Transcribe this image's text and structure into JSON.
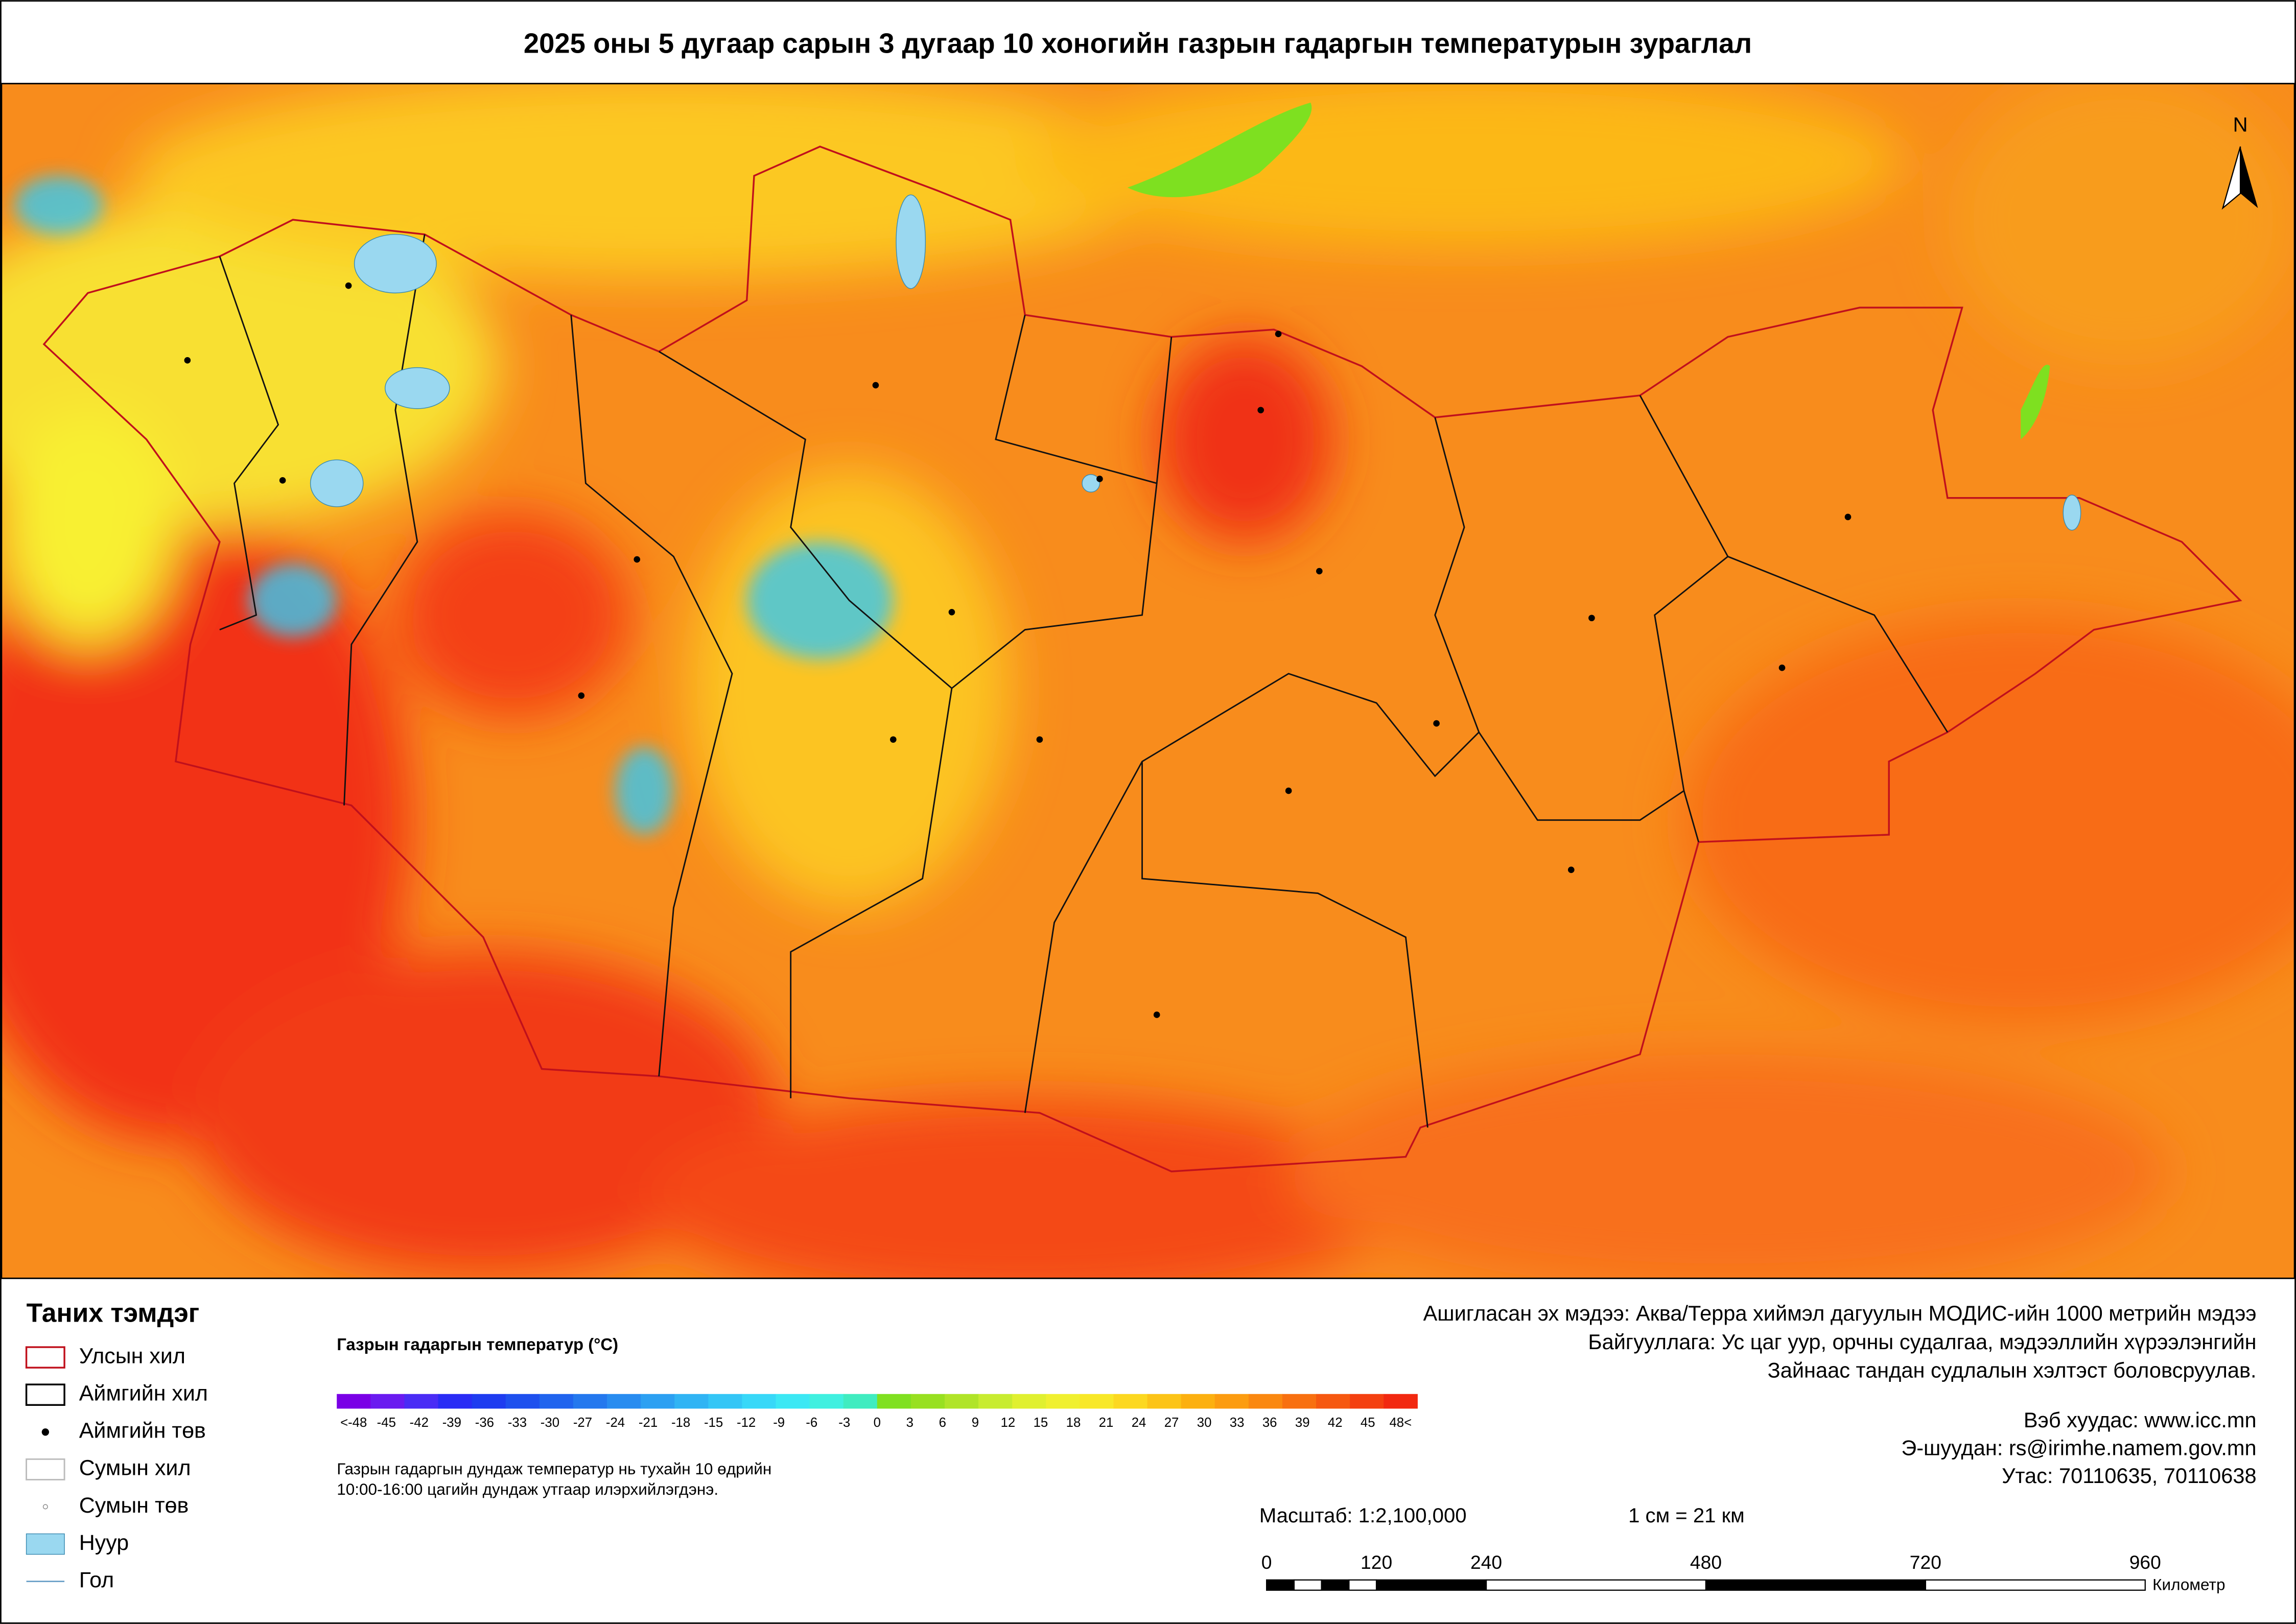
{
  "title": "2025 оны 5 дугаар сарын 3 дугаар 10 хоногийн газрын гадаргын температурын зураглал",
  "north": "N",
  "legend": {
    "title": "Таних тэмдэг",
    "items": [
      "Улсын хил",
      "Аймгийн хил",
      "Аймгийн төв",
      "Сумын хил",
      "Сумын төв",
      "Нуур",
      "Гол"
    ]
  },
  "colorbar": {
    "title": "Газрын гадаргын температур (°C)",
    "labels": [
      "<-48",
      "-45",
      "-42",
      "-39",
      "-36",
      "-33",
      "-30",
      "-27",
      "-24",
      "-21",
      "-18",
      "-15",
      "-12",
      "-9",
      "-6",
      "-3",
      "0",
      "3",
      "6",
      "9",
      "12",
      "15",
      "18",
      "21",
      "24",
      "27",
      "30",
      "33",
      "36",
      "39",
      "42",
      "45",
      "48<"
    ],
    "colors": [
      "#7a00e6",
      "#6a1bf0",
      "#4a2cf5",
      "#2a2cf5",
      "#1e3cf0",
      "#1e50ee",
      "#2064ee",
      "#2478ee",
      "#288cf0",
      "#2ca0f2",
      "#30b4f4",
      "#34c6f6",
      "#38d8f8",
      "#3ce8f4",
      "#40f0e0",
      "#40ecc0",
      "#80e020",
      "#98e020",
      "#b0e428",
      "#c8ec30",
      "#e0f030",
      "#f0f030",
      "#f8e828",
      "#fcd820",
      "#fcc418",
      "#fcb010",
      "#fc9c10",
      "#fa8810",
      "#f87010",
      "#f65810",
      "#f44010",
      "#f22810"
    ]
  },
  "note": [
    "Газрын гадаргын дундаж температур нь тухайн 10 өдрийн",
    "10:00-16:00 цагийн дундаж утгаар илэрхийлэгдэнэ."
  ],
  "source": [
    "Ашигласан эх мэдээ: Аква/Терра хиймэл дагуулын МОДИС-ийн 1000 метрийн мэдээ",
    "Байгууллага: Ус цаг уур, орчны судалгаа, мэдээллийн хүрээлэнгийн",
    "Зайнаас тандан судлалын хэлтэст боловсруулав."
  ],
  "contact": [
    "Вэб хуудас: www.icc.mn",
    "Э-шуудан: rs@irimhe.namem.gov.mn",
    "Утас: 70110635, 70110638"
  ],
  "scale": {
    "text": "Масштаб: 1:2,100,000",
    "ratio": "1 см = 21 км",
    "ticks": [
      0,
      120,
      240,
      480,
      720,
      960
    ],
    "unit": "Километр"
  }
}
